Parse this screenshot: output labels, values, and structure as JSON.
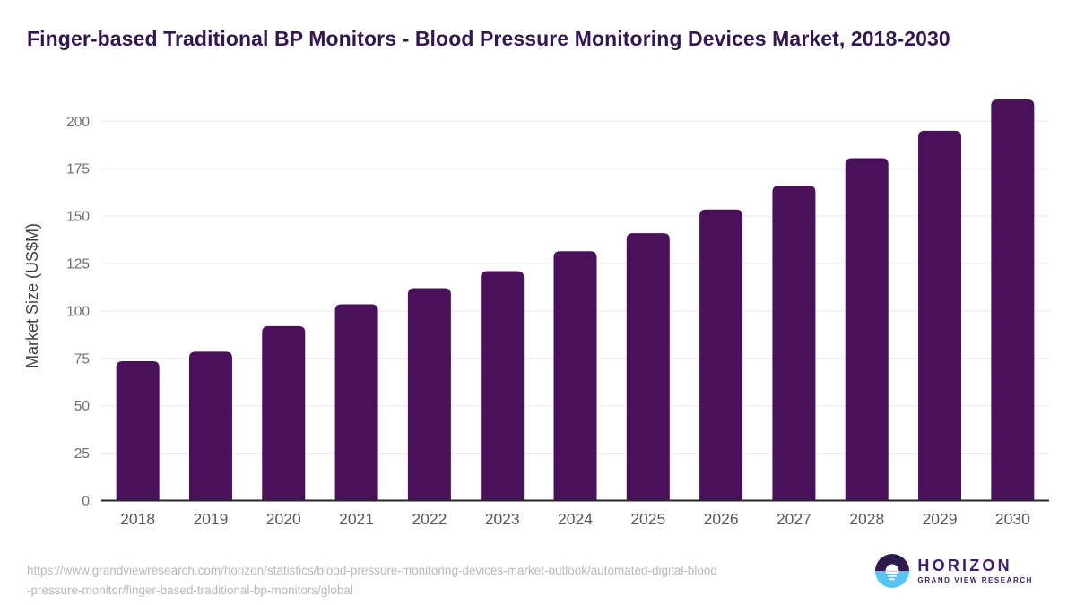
{
  "header": {
    "title": "Finger-based Traditional BP Monitors - Blood Pressure Monitoring Devices Market, 2018-2030"
  },
  "chart_data": {
    "type": "bar",
    "title": "Finger-based Traditional BP Monitors - Blood Pressure Monitoring Devices Market, 2018-2030",
    "categories": [
      "2018",
      "2019",
      "2020",
      "2021",
      "2022",
      "2023",
      "2024",
      "2025",
      "2026",
      "2027",
      "2028",
      "2029",
      "2030"
    ],
    "values": [
      73.5,
      78.5,
      92,
      103.5,
      112,
      121,
      131.5,
      141,
      153.5,
      166,
      180.5,
      195,
      211.5
    ],
    "xlabel": "",
    "ylabel": "Market Size (US$M)",
    "ylim": [
      0,
      220
    ],
    "yticks": [
      0,
      25,
      50,
      75,
      100,
      125,
      150,
      175,
      200
    ],
    "grid": true,
    "legend": false,
    "bar_color": "#4a1059",
    "gridline_color": "#e8e8e8",
    "axis_line_color": "#262626",
    "tick_label_color": "#6e6e6e",
    "x_label_color": "#595959",
    "ylabel_color": "#404040"
  },
  "footer": {
    "source_url_line1": "https://www.grandviewresearch.com/horizon/statistics/blood-pressure-monitoring-devices-market-outlook/automated-digital-blood",
    "source_url_line2": "-pressure-monitor/finger-based-traditional-bp-monitors/global",
    "logo": {
      "name": "HORIZON",
      "tagline": "GRAND VIEW RESEARCH",
      "purple": "#2d1b4e",
      "blue": "#56c5f2"
    }
  }
}
